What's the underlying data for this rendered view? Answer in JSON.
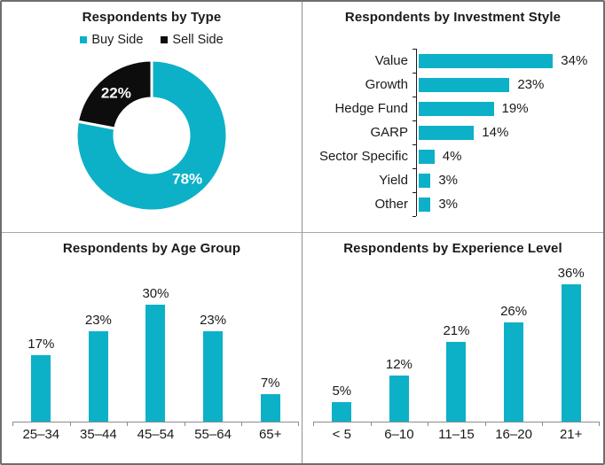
{
  "colors": {
    "accent_cyan": "#0cb1c7",
    "slice_black": "#0d0d0d",
    "axis_dark": "#1a1a1a",
    "axis_gray": "#8c8c8c",
    "label_white": "#ffffff"
  },
  "chart_data": [
    {
      "type": "pie",
      "subtype": "donut",
      "title": "Respondents by Type",
      "legend_position": "top",
      "slices": [
        {
          "label": "Buy Side",
          "value": 78,
          "color": "#0cb1c7",
          "data_label": "78%"
        },
        {
          "label": "Sell Side",
          "value": 22,
          "color": "#0d0d0d",
          "data_label": "22%"
        }
      ]
    },
    {
      "type": "bar",
      "orientation": "horizontal",
      "title": "Respondents by Investment Style",
      "categories": [
        "Value",
        "Growth",
        "Hedge Fund",
        "GARP",
        "Sector Specific",
        "Yield",
        "Other"
      ],
      "values": [
        34,
        23,
        19,
        14,
        4,
        3,
        3
      ],
      "data_labels": [
        "34%",
        "23%",
        "19%",
        "14%",
        "4%",
        "3%",
        "3%"
      ],
      "xlim": [
        0,
        40
      ],
      "grid": false
    },
    {
      "type": "bar",
      "orientation": "vertical",
      "title": "Respondents by Age Group",
      "categories": [
        "25–34",
        "35–44",
        "45–54",
        "55–64",
        "65+"
      ],
      "values": [
        17,
        23,
        30,
        23,
        7
      ],
      "data_labels": [
        "17%",
        "23%",
        "30%",
        "23%",
        "7%"
      ],
      "ylim": [
        0,
        35
      ],
      "grid": false
    },
    {
      "type": "bar",
      "orientation": "vertical",
      "title": "Respondents by Experience Level",
      "categories": [
        "< 5",
        "6–10",
        "11–15",
        "16–20",
        "21+"
      ],
      "values": [
        5,
        12,
        21,
        26,
        36
      ],
      "data_labels": [
        "5%",
        "12%",
        "21%",
        "26%",
        "36%"
      ],
      "ylim": [
        0,
        40
      ],
      "grid": false
    }
  ]
}
